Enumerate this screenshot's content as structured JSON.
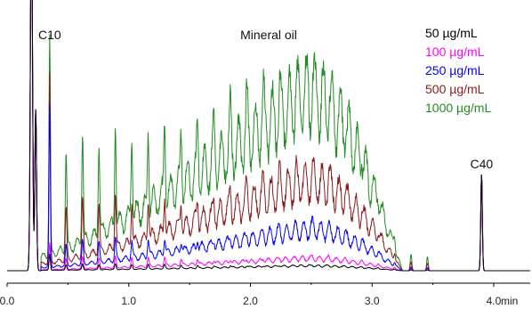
{
  "chart_data": {
    "type": "line",
    "title": "",
    "xlabel": "",
    "ylabel": "",
    "x_unit": "min",
    "xlim": [
      0.0,
      4.3
    ],
    "ylim": [
      0,
      100
    ],
    "x_ticks": [
      "0.0",
      "1.0",
      "2.0",
      "3.0",
      "4.0"
    ],
    "x_tick_values": [
      0.0,
      1.0,
      2.0,
      3.0,
      4.0
    ],
    "grid": false,
    "legend_position": "top-right",
    "annotations": [
      {
        "text": "C10",
        "x": 0.35,
        "y": 88
      },
      {
        "text": "Mineral oil",
        "x": 2.15,
        "y": 88
      },
      {
        "text": "C40",
        "x": 3.9,
        "y": 40
      }
    ],
    "common_peaks": {
      "solvent_front_x": 0.2,
      "C10_x": 0.35,
      "C40_x": 3.9,
      "C40_height": 36
    },
    "series": [
      {
        "name": "50 µg/mL",
        "color": "#000000",
        "baseline": 2,
        "hump_height": 2,
        "peak_height": 2,
        "C10_height": 6
      },
      {
        "name": "100 µg/mL",
        "color": "#ff00ff",
        "baseline": 2,
        "hump_height": 5,
        "peak_height": 4,
        "C10_height": 10
      },
      {
        "name": "250 µg/mL",
        "color": "#0000ff",
        "baseline": 2,
        "hump_height": 17,
        "peak_height": 8,
        "C10_height": 60
      },
      {
        "name": "500 µg/mL",
        "color": "#8b1a1a",
        "baseline": 2,
        "hump_height": 37,
        "peak_height": 20,
        "C10_height": 70
      },
      {
        "name": "1000 µg/mL",
        "color": "#228b22",
        "baseline": 2,
        "hump_height": 73,
        "peak_height": 38,
        "C10_height": 82
      }
    ]
  }
}
